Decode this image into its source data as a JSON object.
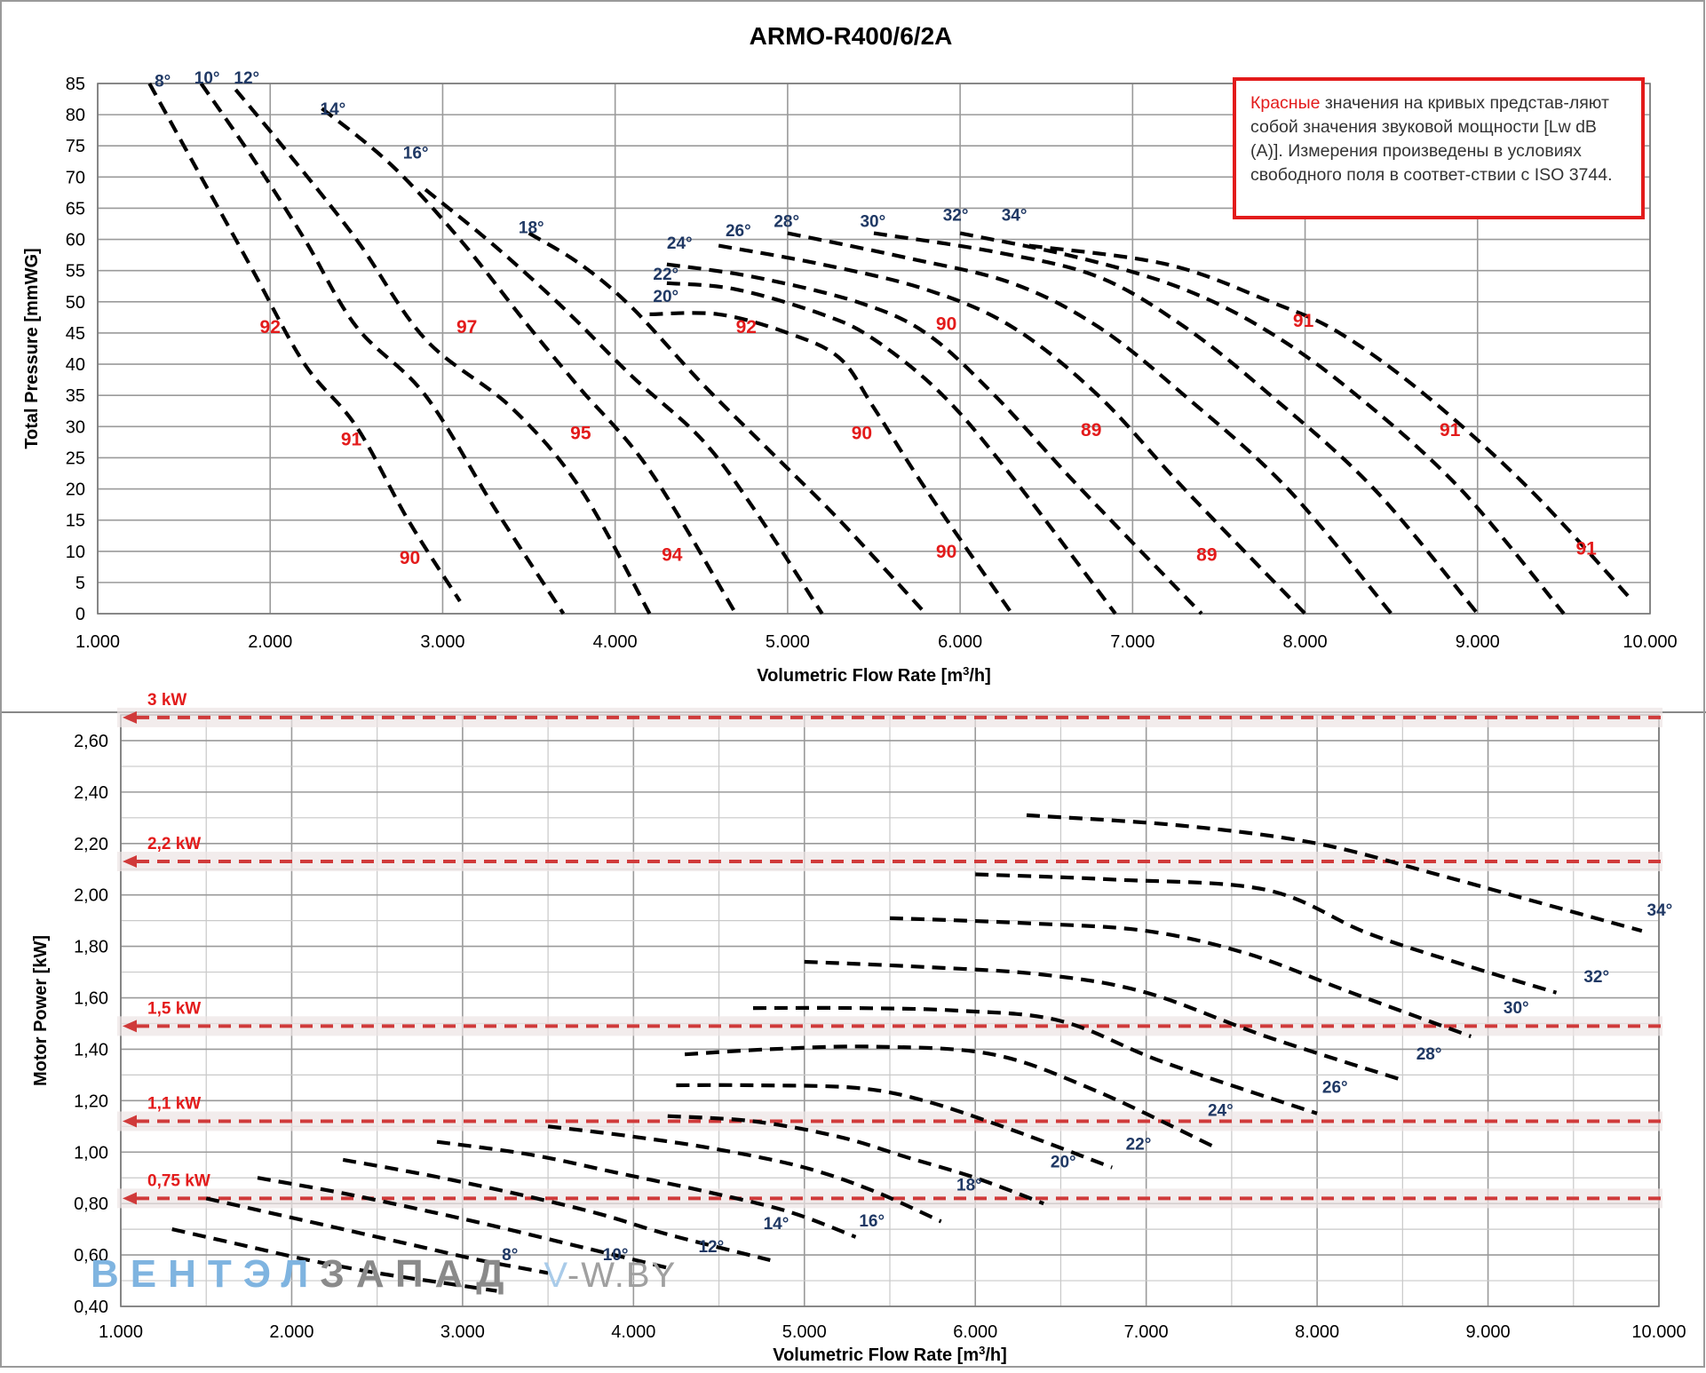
{
  "chart_data": [
    {
      "type": "line",
      "title": "ARMO-R400/6/2A",
      "xlabel": "Volumetric Flow Rate  [m3/h]",
      "ylabel": "Total Pressure [mmWG]",
      "xlim": [
        1000,
        10000
      ],
      "ylim": [
        0,
        85
      ],
      "x_ticks": [
        "1.000",
        "2.000",
        "3.000",
        "4.000",
        "5.000",
        "6.000",
        "7.000",
        "8.000",
        "9.000",
        "10.000"
      ],
      "y_ticks": [
        "0",
        "5",
        "10",
        "15",
        "20",
        "25",
        "30",
        "35",
        "40",
        "45",
        "50",
        "55",
        "60",
        "65",
        "70",
        "75",
        "80",
        "85"
      ],
      "grid": true,
      "note": {
        "highlight": "Красные",
        "text": " значения на кривых представ-ляют собой значения звуковой мощности [Lw dB (A)]. Измерения произведены в условиях свободного поля в соответ-ствии с ISO 3744."
      },
      "series": [
        {
          "name": "8°",
          "x": [
            1300,
            1600,
            1900,
            2200,
            2500,
            2800,
            3100
          ],
          "y": [
            85,
            70,
            55,
            40,
            30,
            15,
            2
          ]
        },
        {
          "name": "10°",
          "x": [
            1600,
            1900,
            2200,
            2500,
            2900,
            3300,
            3700
          ],
          "y": [
            85,
            73,
            60,
            46,
            35,
            17,
            0
          ]
        },
        {
          "name": "12°",
          "x": [
            1800,
            2100,
            2500,
            2900,
            3400,
            3800,
            4200
          ],
          "y": [
            84,
            74,
            60,
            44,
            33,
            20,
            0
          ]
        },
        {
          "name": "14°",
          "x": [
            2300,
            2700,
            3100,
            3500,
            3800,
            4200,
            4700
          ],
          "y": [
            81,
            72,
            60,
            46,
            36,
            23,
            0
          ]
        },
        {
          "name": "16°",
          "x": [
            2900,
            3300,
            3700,
            4100,
            4500,
            4800,
            5200
          ],
          "y": [
            68,
            59,
            49,
            38,
            28,
            17,
            0
          ]
        },
        {
          "name": "18°",
          "x": [
            3500,
            3800,
            4100,
            4500,
            4900,
            5300,
            5800
          ],
          "y": [
            61,
            56,
            49,
            37,
            26,
            15,
            0
          ]
        },
        {
          "name": "20°",
          "x": [
            4200,
            4600,
            5000,
            5300,
            5500,
            5800,
            6300
          ],
          "y": [
            48,
            48,
            45,
            41,
            33,
            20,
            0
          ]
        },
        {
          "name": "22°",
          "x": [
            4300,
            4700,
            5200,
            5500,
            5900,
            6300,
            6900
          ],
          "y": [
            53,
            52,
            48,
            44,
            35,
            22,
            0
          ]
        },
        {
          "name": "24°",
          "x": [
            4300,
            4800,
            5400,
            5800,
            6200,
            6700,
            7400
          ],
          "y": [
            56,
            54,
            50,
            45,
            35,
            20,
            0
          ]
        },
        {
          "name": "26°",
          "x": [
            4600,
            5200,
            5800,
            6300,
            6800,
            7300,
            8000
          ],
          "y": [
            59,
            56,
            52,
            46,
            35,
            20,
            0
          ]
        },
        {
          "name": "28°",
          "x": [
            5000,
            5700,
            6300,
            6800,
            7300,
            7900,
            8500
          ],
          "y": [
            61,
            57,
            53,
            46,
            35,
            20,
            0
          ]
        },
        {
          "name": "30°",
          "x": [
            5500,
            6200,
            6800,
            7300,
            7800,
            8400,
            9000
          ],
          "y": [
            61,
            58,
            54,
            46,
            35,
            20,
            0
          ]
        },
        {
          "name": "32°",
          "x": [
            6000,
            6700,
            7300,
            7800,
            8300,
            8900,
            9500
          ],
          "y": [
            61,
            57,
            52,
            45,
            35,
            20,
            0
          ]
        },
        {
          "name": "34°",
          "x": [
            6400,
            7200,
            7800,
            8200,
            8700,
            9300,
            9900
          ],
          "y": [
            59,
            56,
            50,
            45,
            35,
            20,
            2
          ]
        }
      ],
      "curve_labels": [
        {
          "text": "8°",
          "x": 1330,
          "y": 84.5
        },
        {
          "text": "10°",
          "x": 1560,
          "y": 85
        },
        {
          "text": "12°",
          "x": 1790,
          "y": 85
        },
        {
          "text": "14°",
          "x": 2290,
          "y": 80
        },
        {
          "text": "16°",
          "x": 2770,
          "y": 73
        },
        {
          "text": "18°",
          "x": 3440,
          "y": 61
        },
        {
          "text": "20°",
          "x": 4220,
          "y": 50
        },
        {
          "text": "22°",
          "x": 4220,
          "y": 53.5
        },
        {
          "text": "24°",
          "x": 4300,
          "y": 58.5
        },
        {
          "text": "26°",
          "x": 4640,
          "y": 60.5
        },
        {
          "text": "28°",
          "x": 4920,
          "y": 62
        },
        {
          "text": "30°",
          "x": 5420,
          "y": 62
        },
        {
          "text": "32°",
          "x": 5900,
          "y": 63
        },
        {
          "text": "34°",
          "x": 6240,
          "y": 63
        }
      ],
      "noise_labels": [
        {
          "text": "92",
          "x": 2000,
          "y": 45
        },
        {
          "text": "97",
          "x": 3140,
          "y": 45
        },
        {
          "text": "92",
          "x": 4760,
          "y": 45
        },
        {
          "text": "90",
          "x": 5920,
          "y": 45.5
        },
        {
          "text": "91",
          "x": 7990,
          "y": 46
        },
        {
          "text": "91",
          "x": 2470,
          "y": 27
        },
        {
          "text": "95",
          "x": 3800,
          "y": 28
        },
        {
          "text": "90",
          "x": 5430,
          "y": 28
        },
        {
          "text": "89",
          "x": 6760,
          "y": 28.5
        },
        {
          "text": "91",
          "x": 8840,
          "y": 28.5
        },
        {
          "text": "90",
          "x": 2810,
          "y": 8
        },
        {
          "text": "94",
          "x": 4330,
          "y": 8.5
        },
        {
          "text": "90",
          "x": 5920,
          "y": 9
        },
        {
          "text": "89",
          "x": 7430,
          "y": 8.5
        },
        {
          "text": "91",
          "x": 9630,
          "y": 9.5
        }
      ]
    },
    {
      "type": "line",
      "title": "",
      "xlabel": "Volumetric Flow Rate [m3/h]",
      "ylabel": "Motor Power [kW]",
      "xlim": [
        1000,
        10000
      ],
      "ylim": [
        0.4,
        2.7
      ],
      "x_ticks": [
        "1.000",
        "2.000",
        "3.000",
        "4.000",
        "5.000",
        "6.000",
        "7.000",
        "8.000",
        "9.000",
        "10.000"
      ],
      "y_ticks": [
        "0,40",
        "0,60",
        "0,80",
        "1,00",
        "1,20",
        "1,40",
        "1,60",
        "1,80",
        "2,00",
        "2,20",
        "2,40",
        "2,60"
      ],
      "grid": true,
      "motor_lines": [
        {
          "label": "3 kW",
          "y": 2.69
        },
        {
          "label": "2,2 kW",
          "y": 2.13
        },
        {
          "label": "1,5 kW",
          "y": 1.49
        },
        {
          "label": "1,1 kW",
          "y": 1.12
        },
        {
          "label": "0,75 kW",
          "y": 0.82
        }
      ],
      "series": [
        {
          "name": "8°",
          "x": [
            1300,
            1700,
            2100,
            2500,
            2900,
            3200
          ],
          "y": [
            0.7,
            0.64,
            0.58,
            0.53,
            0.49,
            0.46
          ]
        },
        {
          "name": "10°",
          "x": [
            1500,
            1900,
            2300,
            2700,
            3100,
            3500
          ],
          "y": [
            0.82,
            0.76,
            0.7,
            0.64,
            0.58,
            0.53
          ]
        },
        {
          "name": "12°",
          "x": [
            1800,
            2300,
            2800,
            3200,
            3700,
            4200
          ],
          "y": [
            0.9,
            0.84,
            0.77,
            0.71,
            0.63,
            0.55
          ]
        },
        {
          "name": "14°",
          "x": [
            2300,
            2800,
            3300,
            3800,
            4200,
            4800
          ],
          "y": [
            0.97,
            0.91,
            0.84,
            0.76,
            0.68,
            0.58
          ]
        },
        {
          "name": "16°",
          "x": [
            2850,
            3400,
            3900,
            4400,
            4900,
            5300
          ],
          "y": [
            1.04,
            0.99,
            0.92,
            0.85,
            0.77,
            0.67
          ]
        },
        {
          "name": "18°",
          "x": [
            3500,
            4000,
            4500,
            5000,
            5400,
            5800
          ],
          "y": [
            1.1,
            1.06,
            1.01,
            0.94,
            0.85,
            0.73
          ]
        },
        {
          "name": "20°",
          "x": [
            4200,
            4700,
            5200,
            5600,
            6000,
            6400
          ],
          "y": [
            1.14,
            1.12,
            1.06,
            0.98,
            0.9,
            0.8
          ]
        },
        {
          "name": "22°",
          "x": [
            4250,
            4700,
            5300,
            5700,
            6200,
            6800
          ],
          "y": [
            1.26,
            1.26,
            1.25,
            1.2,
            1.09,
            0.94
          ]
        },
        {
          "name": "24°",
          "x": [
            4300,
            4800,
            5400,
            6100,
            6700,
            7400
          ],
          "y": [
            1.38,
            1.4,
            1.41,
            1.38,
            1.24,
            1.02
          ]
        },
        {
          "name": "26°",
          "x": [
            4700,
            5300,
            5900,
            6500,
            7100,
            8000
          ],
          "y": [
            1.56,
            1.56,
            1.55,
            1.51,
            1.35,
            1.15
          ]
        },
        {
          "name": "28°",
          "x": [
            5000,
            5700,
            6400,
            7000,
            7700,
            8500
          ],
          "y": [
            1.74,
            1.72,
            1.69,
            1.62,
            1.45,
            1.28
          ]
        },
        {
          "name": "30°",
          "x": [
            5500,
            6300,
            7000,
            7600,
            8200,
            8900
          ],
          "y": [
            1.91,
            1.89,
            1.86,
            1.77,
            1.62,
            1.45
          ]
        },
        {
          "name": "32°",
          "x": [
            6000,
            6800,
            7700,
            8300,
            8900,
            9400
          ],
          "y": [
            2.08,
            2.06,
            2.02,
            1.85,
            1.72,
            1.62
          ]
        },
        {
          "name": "34°",
          "x": [
            6300,
            7200,
            8000,
            8700,
            9300,
            9900
          ],
          "y": [
            2.31,
            2.27,
            2.2,
            2.08,
            1.97,
            1.86
          ]
        }
      ],
      "curve_labels": [
        {
          "text": "8°",
          "x": 3230,
          "y": 0.58
        },
        {
          "text": "10°",
          "x": 3820,
          "y": 0.58
        },
        {
          "text": "12°",
          "x": 4380,
          "y": 0.61
        },
        {
          "text": "14°",
          "x": 4760,
          "y": 0.7
        },
        {
          "text": "16°",
          "x": 5320,
          "y": 0.71
        },
        {
          "text": "18°",
          "x": 5890,
          "y": 0.85
        },
        {
          "text": "20°",
          "x": 6440,
          "y": 0.94
        },
        {
          "text": "22°",
          "x": 6880,
          "y": 1.01
        },
        {
          "text": "24°",
          "x": 7360,
          "y": 1.14
        },
        {
          "text": "26°",
          "x": 8030,
          "y": 1.23
        },
        {
          "text": "28°",
          "x": 8580,
          "y": 1.36
        },
        {
          "text": "30°",
          "x": 9090,
          "y": 1.54
        },
        {
          "text": "32°",
          "x": 9560,
          "y": 1.66
        },
        {
          "text": "34°",
          "x": 9930,
          "y": 1.92
        }
      ]
    }
  ],
  "watermark": {
    "part1": "ВЕНТЭЛ",
    "part2": "ЗАПАД",
    "part3": "V",
    "part4": "-W.BY"
  }
}
